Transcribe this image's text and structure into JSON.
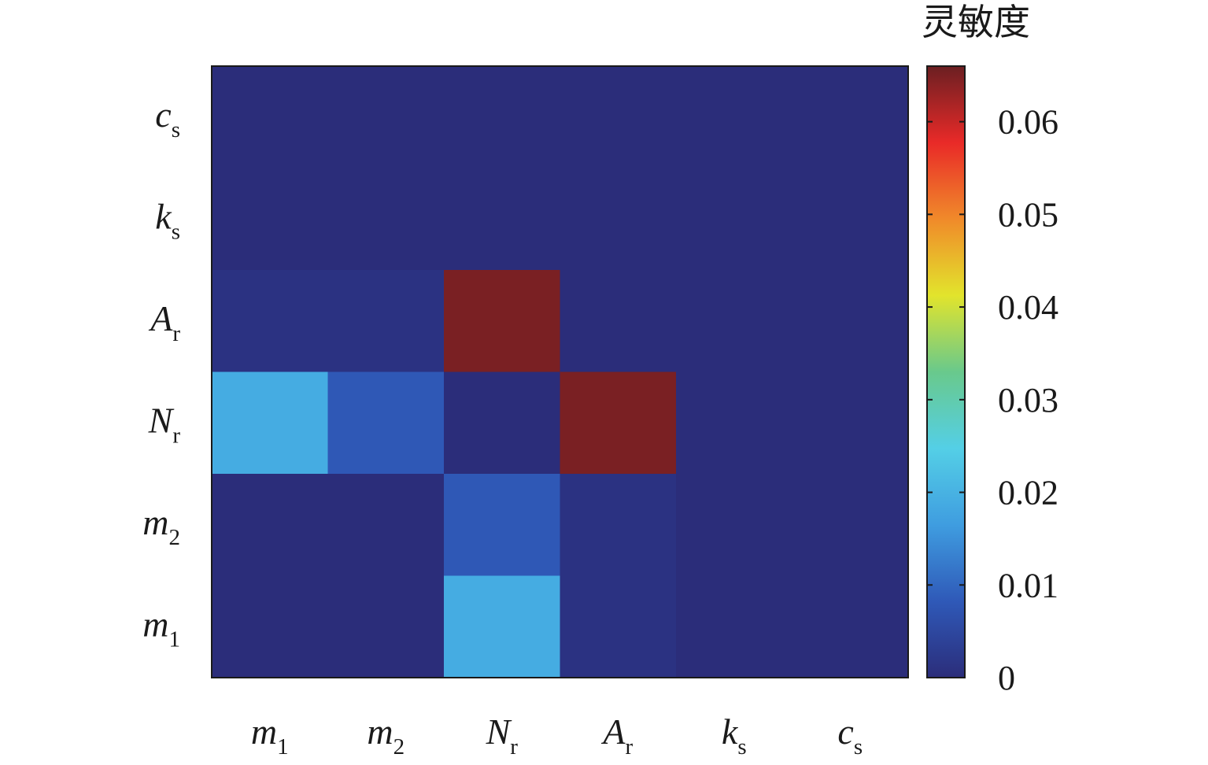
{
  "chart_data": {
    "type": "heatmap",
    "title": "",
    "colorbar_label": "灵敏度",
    "x_labels": [
      {
        "base": "m",
        "sub": "1"
      },
      {
        "base": "m",
        "sub": "2"
      },
      {
        "base": "N",
        "sub": "r"
      },
      {
        "base": "A",
        "sub": "r"
      },
      {
        "base": "k",
        "sub": "s"
      },
      {
        "base": "c",
        "sub": "s"
      }
    ],
    "y_labels_top_to_bottom": [
      {
        "base": "c",
        "sub": "s"
      },
      {
        "base": "k",
        "sub": "s"
      },
      {
        "base": "A",
        "sub": "r"
      },
      {
        "base": "N",
        "sub": "r"
      },
      {
        "base": "m",
        "sub": "2"
      },
      {
        "base": "m",
        "sub": "1"
      }
    ],
    "values_top_to_bottom": [
      [
        0.0,
        0.0,
        0.0,
        0.0,
        0.0,
        0.0
      ],
      [
        0.0,
        0.0,
        0.0,
        0.0,
        0.0,
        0.0
      ],
      [
        0.001,
        0.001,
        0.065,
        0.0,
        0.0,
        0.0
      ],
      [
        0.019,
        0.008,
        0.0,
        0.065,
        0.0,
        0.0
      ],
      [
        0.0,
        0.0,
        0.008,
        0.001,
        0.0,
        0.0
      ],
      [
        0.0,
        0.0,
        0.019,
        0.001,
        0.0,
        0.0
      ]
    ],
    "color_range": [
      0,
      0.066
    ],
    "colorbar_ticks": [
      "0",
      "0.01",
      "0.02",
      "0.03",
      "0.04",
      "0.05",
      "0.06"
    ],
    "colormap": "parula-jet",
    "colormap_stops": [
      "#2b2d7a",
      "#2f59b8",
      "#3f9de0",
      "#54cfe6",
      "#69c98c",
      "#e2e42c",
      "#f08a2a",
      "#e92a28",
      "#6b1f22"
    ]
  }
}
